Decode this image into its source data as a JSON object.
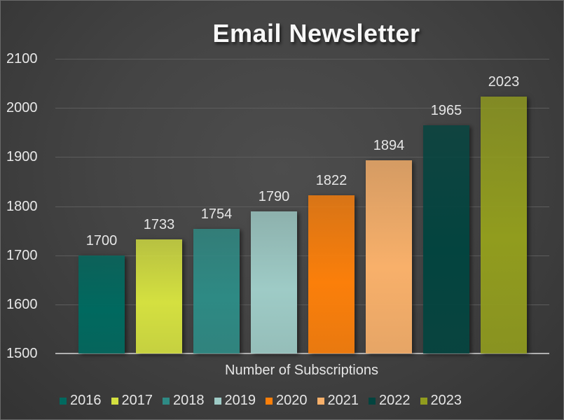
{
  "chart_data": {
    "type": "bar",
    "title": "Email Newsletter",
    "xlabel": "Number of Subscriptions",
    "ylabel": "",
    "ylim": [
      1500,
      2100
    ],
    "yticks": [
      "2100",
      "2000",
      "1900",
      "1800",
      "1700",
      "1600",
      "1500"
    ],
    "grid": true,
    "legend_position": "bottom",
    "categories": [
      "Number of Subscriptions"
    ],
    "series": [
      {
        "name": "2016",
        "values": [
          1700
        ],
        "color": "#00695f"
      },
      {
        "name": "2017",
        "values": [
          1733
        ],
        "color": "#d4e040"
      },
      {
        "name": "2018",
        "values": [
          1754
        ],
        "color": "#2e8a84"
      },
      {
        "name": "2019",
        "values": [
          1790
        ],
        "color": "#9ecbc6"
      },
      {
        "name": "2020",
        "values": [
          1822
        ],
        "color": "#fb7f0a"
      },
      {
        "name": "2021",
        "values": [
          1894
        ],
        "color": "#f8b06a"
      },
      {
        "name": "2022",
        "values": [
          1965
        ],
        "color": "#03443f"
      },
      {
        "name": "2023",
        "values": [
          2023
        ],
        "color": "#919c1e"
      }
    ],
    "data_labels": [
      "1700",
      "1733",
      "1754",
      "1790",
      "1822",
      "1894",
      "1965",
      "2023"
    ]
  }
}
